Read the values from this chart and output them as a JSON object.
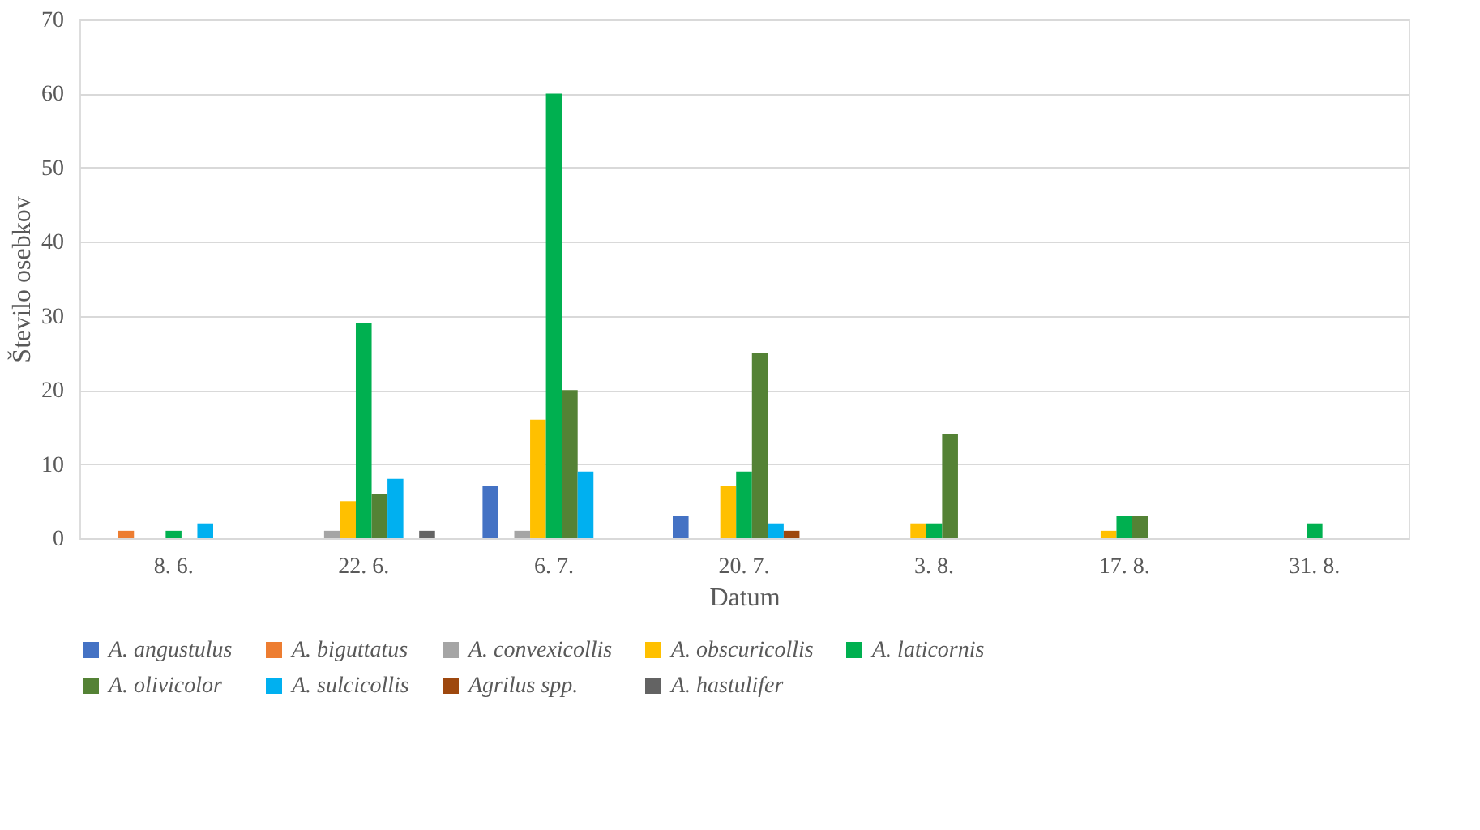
{
  "chart_data": {
    "type": "bar",
    "xlabel": "Datum",
    "ylabel": "Število osebkov",
    "categories": [
      "8. 6.",
      "22. 6.",
      "6. 7.",
      "20. 7.",
      "3. 8.",
      "17. 8.",
      "31. 8."
    ],
    "series": [
      {
        "name": "A. angustulus",
        "color": "#4472c4",
        "values": [
          0,
          0,
          7,
          3,
          0,
          0,
          0
        ]
      },
      {
        "name": "A. biguttatus",
        "color": "#ed7d31",
        "values": [
          1,
          0,
          0,
          0,
          0,
          0,
          0
        ]
      },
      {
        "name": "A. convexicollis",
        "color": "#a5a5a5",
        "values": [
          0,
          1,
          1,
          0,
          0,
          0,
          0
        ]
      },
      {
        "name": "A. obscuricollis",
        "color": "#ffc000",
        "values": [
          0,
          5,
          16,
          7,
          2,
          1,
          0
        ]
      },
      {
        "name": "A. laticornis",
        "color": "#00b050",
        "values": [
          1,
          29,
          60,
          9,
          2,
          3,
          2
        ]
      },
      {
        "name": "A. olivicolor",
        "color": "#548235",
        "values": [
          0,
          6,
          20,
          25,
          14,
          3,
          0
        ]
      },
      {
        "name": "A. sulcicollis",
        "color": "#00b0f0",
        "values": [
          2,
          8,
          9,
          2,
          0,
          0,
          0
        ]
      },
      {
        "name": "Agrilus spp.",
        "color": "#9e480e",
        "values": [
          0,
          0,
          0,
          1,
          0,
          0,
          0
        ]
      },
      {
        "name": "A. hastulifer",
        "color": "#636363",
        "values": [
          0,
          1,
          0,
          0,
          0,
          0,
          0
        ]
      }
    ],
    "ylim": [
      0,
      70
    ],
    "yticks": [
      0,
      10,
      20,
      30,
      40,
      50,
      60,
      70
    ],
    "grid": "y",
    "legend": "bottom"
  }
}
